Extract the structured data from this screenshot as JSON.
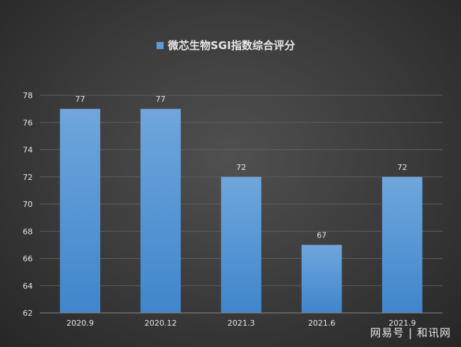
{
  "chart_data": {
    "type": "bar",
    "title": "微芯生物SGI指数综合评分",
    "legend": {
      "label": "微芯生物SGI指数综合评分",
      "placement": "top"
    },
    "categories": [
      "2020.9",
      "2020.12",
      "2021.3",
      "2021.6",
      "2021.9"
    ],
    "values": [
      77,
      77,
      72,
      67,
      72
    ],
    "ylim": [
      62,
      78
    ],
    "yticks": [
      62,
      64,
      66,
      68,
      70,
      72,
      74,
      76,
      78
    ],
    "grid": true,
    "data_labels": true,
    "colors": {
      "bar_top": "#6fa6dc",
      "bar_bottom": "#3f86cc",
      "legend_swatch": "#5b9bd5",
      "grid": "#5e5e5e",
      "axis": "#8a8a8a",
      "text": "#e6e6e6"
    }
  },
  "watermark": {
    "text": "网易号 | 和讯网"
  }
}
